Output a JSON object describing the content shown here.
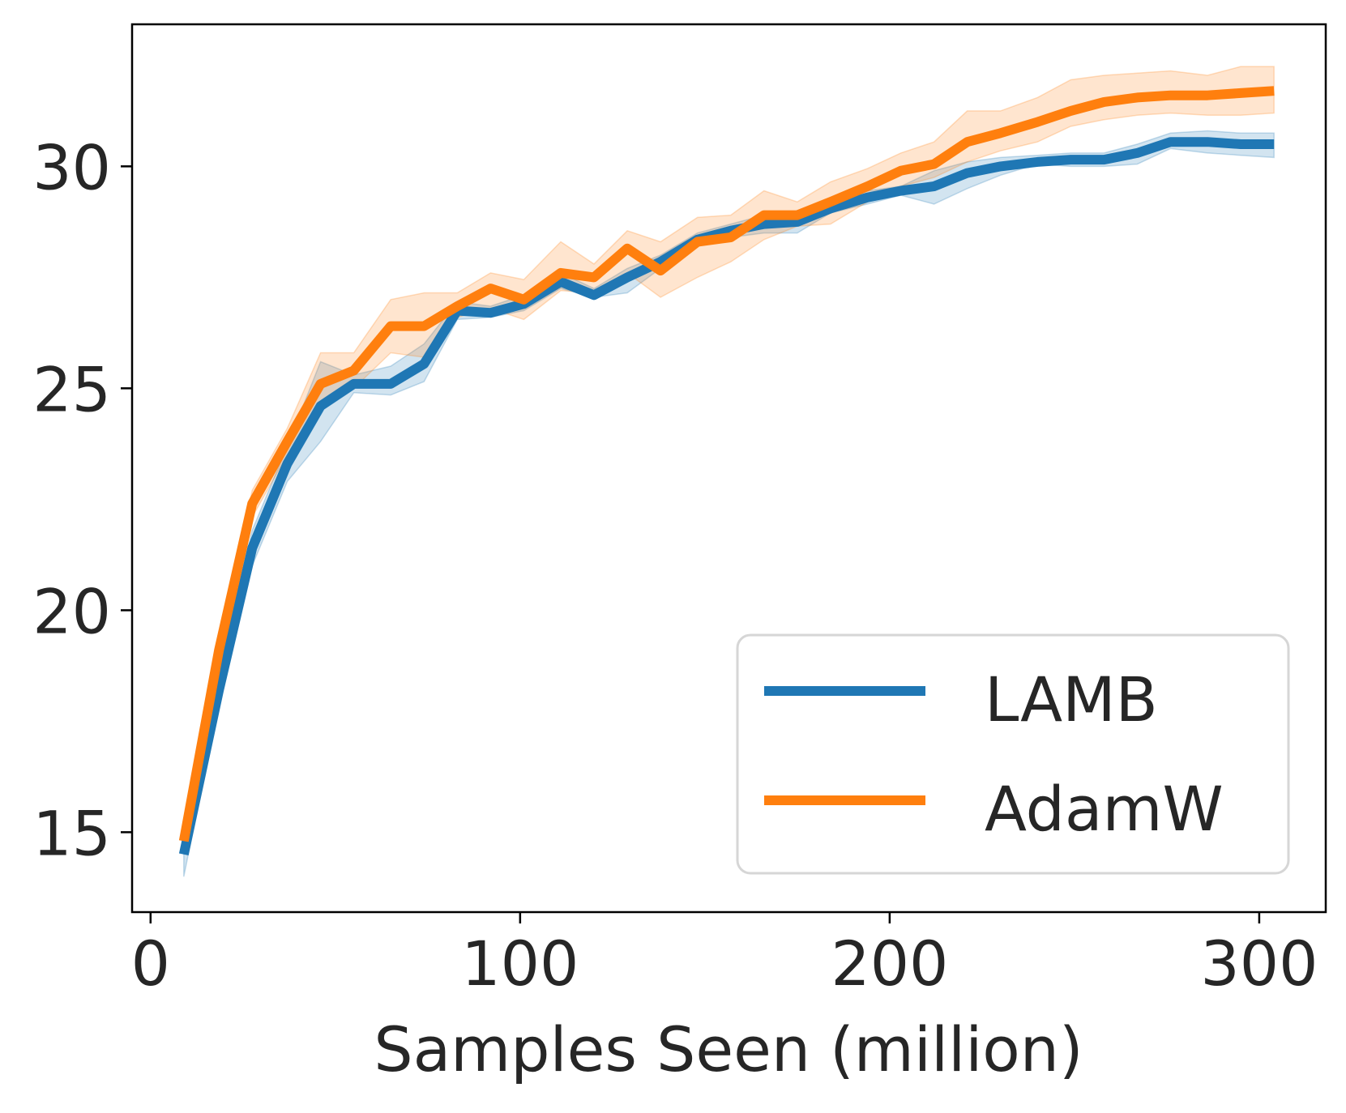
{
  "chart_data": {
    "type": "line",
    "title": "",
    "xlabel": "Samples Seen (million)",
    "ylabel": "",
    "xlim": [
      -5,
      318
    ],
    "ylim": [
      13.2,
      33.2
    ],
    "xticks": [
      0,
      100,
      200,
      300
    ],
    "yticks": [
      15,
      20,
      25,
      30
    ],
    "grid": false,
    "legend_position": "lower-right",
    "x": [
      9,
      18.5,
      27.5,
      37,
      46,
      55,
      65,
      74,
      83,
      92,
      101,
      111,
      120,
      129,
      138,
      148,
      157,
      166,
      175,
      184,
      194,
      203,
      212,
      221,
      230,
      240,
      249,
      258,
      267,
      276,
      286,
      295,
      304
    ],
    "series": [
      {
        "name": "LAMB",
        "color": "#1f77b4",
        "values": [
          14.5,
          18.2,
          21.4,
          23.3,
          24.6,
          25.1,
          25.1,
          25.55,
          26.75,
          26.7,
          26.9,
          27.4,
          27.1,
          27.5,
          27.85,
          28.35,
          28.55,
          28.7,
          28.75,
          29.05,
          29.3,
          29.45,
          29.55,
          29.85,
          30.0,
          30.1,
          30.15,
          30.15,
          30.3,
          30.55,
          30.55,
          30.5,
          30.5
        ],
        "lower": [
          14.0,
          17.9,
          21.0,
          22.9,
          23.8,
          24.9,
          24.85,
          25.15,
          26.55,
          26.6,
          26.75,
          27.25,
          27.05,
          27.15,
          27.7,
          28.2,
          28.4,
          28.5,
          28.5,
          28.95,
          29.15,
          29.35,
          29.15,
          29.5,
          29.8,
          30.05,
          30.0,
          30.0,
          30.05,
          30.4,
          30.3,
          30.25,
          30.2
        ],
        "upper": [
          14.8,
          18.5,
          21.8,
          23.7,
          25.6,
          25.3,
          25.5,
          26.0,
          26.95,
          26.85,
          27.1,
          27.6,
          27.25,
          27.7,
          28.0,
          28.5,
          28.7,
          28.9,
          29.0,
          29.15,
          29.45,
          29.55,
          29.9,
          30.1,
          30.2,
          30.25,
          30.3,
          30.3,
          30.5,
          30.75,
          30.8,
          30.75,
          30.75
        ]
      },
      {
        "name": "AdamW",
        "color": "#ff7f0e",
        "values": [
          14.8,
          19.1,
          22.4,
          23.8,
          25.1,
          25.4,
          26.4,
          26.4,
          26.85,
          27.25,
          27.0,
          27.6,
          27.5,
          28.15,
          27.65,
          28.3,
          28.4,
          28.9,
          28.9,
          29.2,
          29.55,
          29.9,
          30.05,
          30.55,
          30.75,
          31.0,
          31.25,
          31.45,
          31.55,
          31.6,
          31.6,
          31.65,
          31.7
        ],
        "lower": [
          14.6,
          18.8,
          22.1,
          23.5,
          24.7,
          25.0,
          25.8,
          25.7,
          26.6,
          26.8,
          26.55,
          27.2,
          27.15,
          27.6,
          27.05,
          27.5,
          27.85,
          28.35,
          28.65,
          28.7,
          29.2,
          29.55,
          29.75,
          30.1,
          30.35,
          30.55,
          30.9,
          31.05,
          31.15,
          31.2,
          31.15,
          31.15,
          31.2
        ],
        "upper": [
          15.0,
          19.4,
          22.7,
          24.1,
          25.8,
          25.8,
          27.0,
          27.15,
          27.15,
          27.6,
          27.45,
          28.3,
          27.8,
          28.55,
          28.3,
          28.85,
          28.9,
          29.45,
          29.2,
          29.65,
          29.95,
          30.3,
          30.55,
          31.25,
          31.25,
          31.55,
          31.95,
          32.05,
          32.1,
          32.15,
          32.05,
          32.25,
          32.25
        ]
      }
    ]
  }
}
